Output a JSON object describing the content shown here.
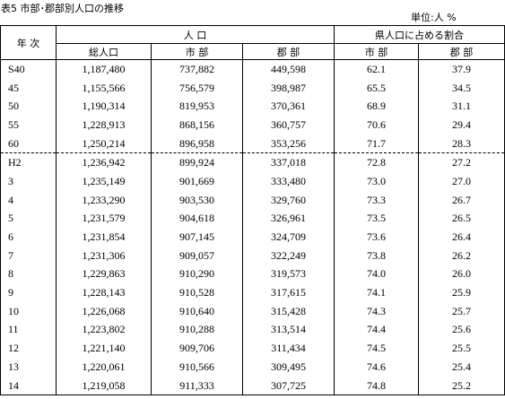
{
  "header": {
    "title": "表5 市部･郡部別人口の推移",
    "unit": "単位:人 %"
  },
  "table": {
    "columns": {
      "year": "年 次",
      "population": "人 口",
      "share": "県人口に占める割合",
      "total": "総人口",
      "city": "市 部",
      "county": "郡 部",
      "city_share": "市 部",
      "county_share": "郡 部"
    },
    "rows": [
      [
        "S40",
        "1,187,480",
        "737,882",
        "449,598",
        "62.1",
        "37.9"
      ],
      [
        "45",
        "1,155,566",
        "756,579",
        "398,987",
        "65.5",
        "34.5"
      ],
      [
        "50",
        "1,190,314",
        "819,953",
        "370,361",
        "68.9",
        "31.1"
      ],
      [
        "55",
        "1,228,913",
        "868,156",
        "360,757",
        "70.6",
        "29.4"
      ],
      [
        "60",
        "1,250,214",
        "896,958",
        "353,256",
        "71.7",
        "28.3"
      ],
      [
        "H2",
        "1,236,942",
        "899,924",
        "337,018",
        "72.8",
        "27.2"
      ],
      [
        "3",
        "1,235,149",
        "901,669",
        "333,480",
        "73.0",
        "27.0"
      ],
      [
        "4",
        "1,233,290",
        "903,530",
        "329,760",
        "73.3",
        "26.7"
      ],
      [
        "5",
        "1,231,579",
        "904,618",
        "326,961",
        "73.5",
        "26.5"
      ],
      [
        "6",
        "1,231,854",
        "907,145",
        "324,709",
        "73.6",
        "26.4"
      ],
      [
        "7",
        "1,231,306",
        "909,057",
        "322,249",
        "73.8",
        "26.2"
      ],
      [
        "8",
        "1,229,863",
        "910,290",
        "319,573",
        "74.0",
        "26.0"
      ],
      [
        "9",
        "1,228,143",
        "910,528",
        "317,615",
        "74.1",
        "25.9"
      ],
      [
        "10",
        "1,226,068",
        "910,640",
        "315,428",
        "74.3",
        "25.7"
      ],
      [
        "11",
        "1,223,802",
        "910,288",
        "313,514",
        "74.4",
        "25.6"
      ],
      [
        "12",
        "1,221,140",
        "909,706",
        "311,434",
        "74.5",
        "25.5"
      ],
      [
        "13",
        "1,220,061",
        "910,566",
        "309,495",
        "74.6",
        "25.4"
      ],
      [
        "14",
        "1,219,058",
        "911,333",
        "307,725",
        "74.8",
        "25.2"
      ]
    ]
  }
}
